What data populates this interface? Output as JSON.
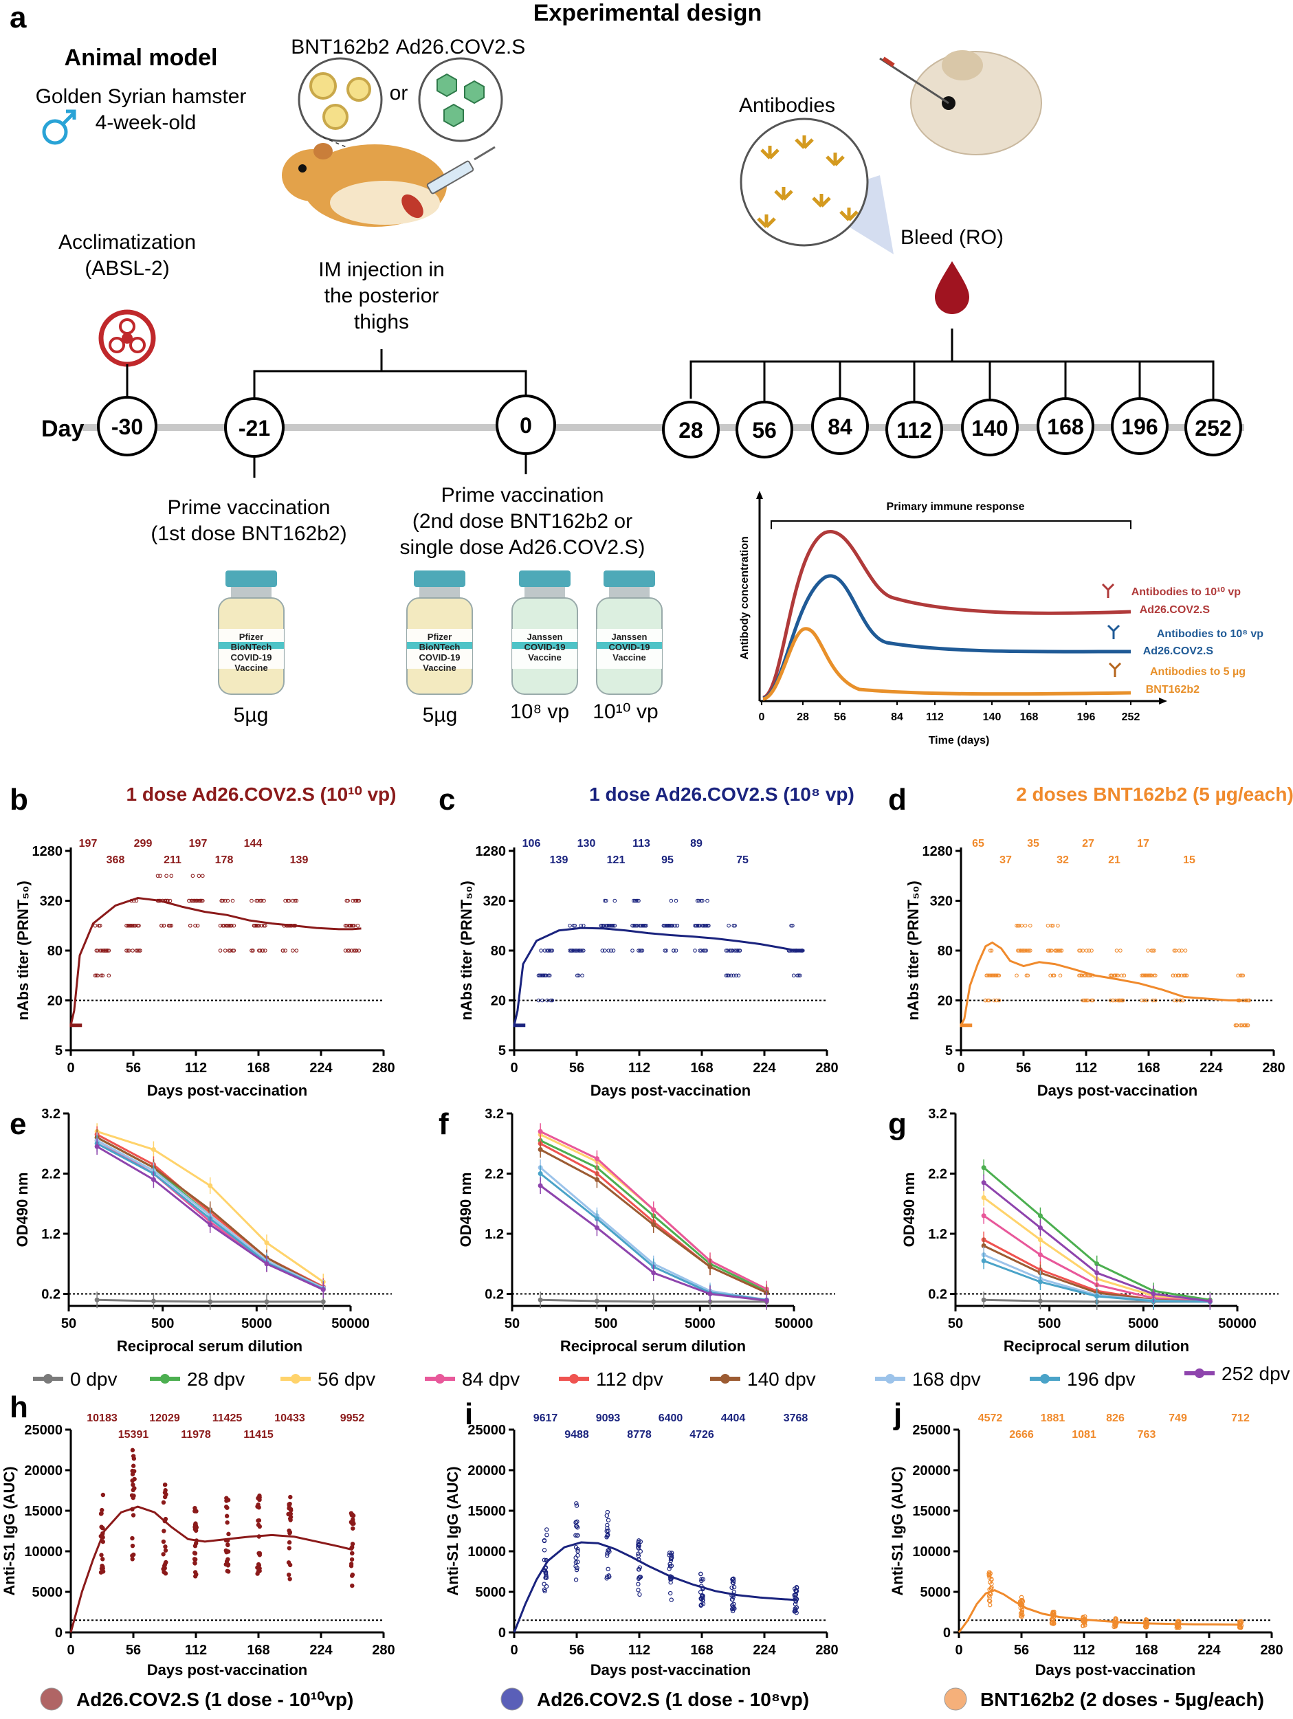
{
  "design": {
    "panel_label": "a",
    "title": "Experimental design",
    "animal_model_heading": "Animal model",
    "animal_line1": "Golden Syrian hamster",
    "animal_line2": "4-week-old",
    "vaccine_bnt": "BNT162b2",
    "vaccine_ad26": "Ad26.COV2.S",
    "or_text": "or",
    "antibodies_label": "Antibodies",
    "bleed_label": "Bleed (RO)",
    "acclim_line1": "Acclimatization",
    "acclim_line2": "(ABSL-2)",
    "im_line1": "IM injection in",
    "im_line2": "the posterior",
    "im_line3": "thighs",
    "day_label": "Day",
    "days": [
      "-30",
      "-21",
      "0",
      "28",
      "56",
      "84",
      "112",
      "140",
      "168",
      "196",
      "252"
    ],
    "prime1_line1": "Prime vaccination",
    "prime1_line2": "(1st dose BNT162b2)",
    "prime2_line1": "Prime vaccination",
    "prime2_line2": "(2nd dose BNT162b2 or",
    "prime2_line3": "single dose Ad26.COV2.S)",
    "vial_pfizer": [
      "Pfizer",
      "BioNTech",
      "COVID-19",
      "Vaccine"
    ],
    "vial_janssen": [
      "Janssen",
      "COVID-19",
      "Vaccine"
    ],
    "dose_5ug_a": "5µg",
    "dose_5ug_b": "5µg",
    "dose_10e8": "10⁸ vp",
    "dose_10e10": "10¹⁰ vp",
    "inset": {
      "title": "Primary immune response",
      "ylabel": "Antibody concentration",
      "xlabel": "Time (days)",
      "xticks": [
        "0",
        "28",
        "56",
        "84",
        "112",
        "140",
        "168",
        "196",
        "252"
      ],
      "leg1a": "Antibodies to 10¹⁰ vp",
      "leg1b": "Ad26.COV2.S",
      "leg2a": "Antibodies to 10⁸ vp",
      "leg2b": "Ad26.COV2.S",
      "leg3a": "Antibodies to 5 µg",
      "leg3b": "BNT162b2"
    }
  },
  "colors": {
    "ad26_high": "#8b1a1a",
    "ad26_low": "#1a237e",
    "bnt": "#f08a2c",
    "inset_red": "#b03a3a",
    "inset_blue": "#1f5a96",
    "inset_orange": "#e8902a"
  },
  "chart_data": [
    {
      "id": "b",
      "type": "scatter",
      "panel_label": "b",
      "title": "1 dose Ad26.COV2.S (10¹⁰ vp)",
      "xlabel": "Days post-vaccination",
      "ylabel": "nAbs titer (PRNT₅₀)",
      "x_ticks": [
        "0",
        "56",
        "112",
        "168",
        "224",
        "280"
      ],
      "y_ticks": [
        "5",
        "20",
        "80",
        "320",
        "1280"
      ],
      "xlim": [
        0,
        280
      ],
      "ylim_log2": [
        5,
        1280
      ],
      "threshold": 20,
      "annotations": [
        {
          "day": 0,
          "label": "197"
        },
        {
          "day": 28,
          "label": "368"
        },
        {
          "day": 56,
          "label": "299"
        },
        {
          "day": 84,
          "label": "211"
        },
        {
          "day": 112,
          "label": "197"
        },
        {
          "day": 140,
          "label": "178"
        },
        {
          "day": 168,
          "label": "144"
        },
        {
          "day": 252,
          "label": "139"
        }
      ],
      "curve_x": [
        0,
        3,
        8,
        20,
        40,
        60,
        80,
        100,
        120,
        140,
        160,
        180,
        200,
        220,
        240,
        252,
        260
      ],
      "curve_y": [
        10,
        15,
        70,
        170,
        280,
        345,
        320,
        270,
        235,
        215,
        185,
        170,
        160,
        150,
        145,
        145,
        148
      ]
    },
    {
      "id": "c",
      "type": "scatter",
      "panel_label": "c",
      "title": "1 dose Ad26.COV2.S (10⁸ vp)",
      "xlabel": "Days post-vaccination",
      "ylabel": "nAbs titer (PRNT₅₀)",
      "x_ticks": [
        "0",
        "56",
        "112",
        "168",
        "224",
        "280"
      ],
      "y_ticks": [
        "5",
        "20",
        "80",
        "320",
        "1280"
      ],
      "xlim": [
        0,
        280
      ],
      "ylim_log2": [
        5,
        1280
      ],
      "threshold": 20,
      "annotations": [
        {
          "day": 0,
          "label": "106"
        },
        {
          "day": 28,
          "label": "139"
        },
        {
          "day": 56,
          "label": "130"
        },
        {
          "day": 84,
          "label": "121"
        },
        {
          "day": 112,
          "label": "113"
        },
        {
          "day": 140,
          "label": "95"
        },
        {
          "day": 168,
          "label": "89"
        },
        {
          "day": 252,
          "label": "75"
        }
      ],
      "curve_x": [
        0,
        3,
        8,
        20,
        40,
        60,
        80,
        100,
        120,
        140,
        160,
        180,
        200,
        220,
        240,
        252,
        260
      ],
      "curve_y": [
        10,
        15,
        55,
        105,
        140,
        150,
        148,
        140,
        130,
        123,
        118,
        112,
        104,
        96,
        86,
        80,
        80
      ]
    },
    {
      "id": "d",
      "type": "scatter",
      "panel_label": "d",
      "title": "2 doses BNT162b2 (5 µg/each)",
      "xlabel": "Days post-vaccination",
      "ylabel": "nAbs titer (PRNT₅₀)",
      "x_ticks": [
        "0",
        "56",
        "112",
        "168",
        "224",
        "280"
      ],
      "y_ticks": [
        "5",
        "20",
        "80",
        "320",
        "1280"
      ],
      "xlim": [
        0,
        280
      ],
      "ylim_log2": [
        5,
        1280
      ],
      "threshold": 20,
      "annotations": [
        {
          "day": 0,
          "label": "65"
        },
        {
          "day": 28,
          "label": "37"
        },
        {
          "day": 56,
          "label": "35"
        },
        {
          "day": 84,
          "label": "32"
        },
        {
          "day": 112,
          "label": "27"
        },
        {
          "day": 140,
          "label": "21"
        },
        {
          "day": 168,
          "label": "17"
        },
        {
          "day": 252,
          "label": "15"
        }
      ],
      "curve_x": [
        0,
        3,
        8,
        15,
        22,
        28,
        36,
        44,
        56,
        70,
        84,
        100,
        120,
        140,
        160,
        180,
        200,
        220,
        240,
        252
      ],
      "curve_y": [
        10,
        12,
        30,
        55,
        90,
        100,
        85,
        60,
        52,
        58,
        55,
        48,
        40,
        36,
        32,
        27,
        22,
        21,
        20,
        20
      ]
    },
    {
      "id": "e",
      "type": "line",
      "panel_label": "e",
      "xlabel": "Reciprocal serum dilution",
      "ylabel": "OD490 nm",
      "x_ticks": [
        "50",
        "500",
        "5000",
        "50000"
      ],
      "y_ticks": [
        "0.2",
        "1.2",
        "2.2",
        "3.2"
      ],
      "xlim_log": [
        50,
        50000
      ],
      "ylim": [
        0,
        3.2
      ],
      "threshold": 0.2,
      "dilutions": [
        100,
        400,
        1600,
        6400,
        25600
      ],
      "series": [
        {
          "name": "0 dpv",
          "values": [
            0.1,
            0.08,
            0.07,
            0.07,
            0.07
          ]
        },
        {
          "name": "28 dpv",
          "values": [
            2.8,
            2.3,
            1.5,
            0.75,
            0.3
          ]
        },
        {
          "name": "56 dpv",
          "values": [
            2.9,
            2.6,
            2.0,
            1.05,
            0.4
          ]
        },
        {
          "name": "84 dpv",
          "values": [
            2.75,
            2.2,
            1.4,
            0.7,
            0.28
          ]
        },
        {
          "name": "112 dpv",
          "values": [
            2.85,
            2.35,
            1.55,
            0.8,
            0.32
          ]
        },
        {
          "name": "140 dpv",
          "values": [
            2.8,
            2.3,
            1.6,
            0.8,
            0.3
          ]
        },
        {
          "name": "168 dpv",
          "values": [
            2.75,
            2.25,
            1.5,
            0.75,
            0.3
          ]
        },
        {
          "name": "196 dpv",
          "values": [
            2.7,
            2.2,
            1.45,
            0.72,
            0.28
          ]
        },
        {
          "name": "252 dpv",
          "values": [
            2.65,
            2.1,
            1.35,
            0.7,
            0.27
          ]
        }
      ]
    },
    {
      "id": "f",
      "type": "line",
      "panel_label": "f",
      "xlabel": "Reciprocal serum dilution",
      "ylabel": "OD490 nm",
      "x_ticks": [
        "50",
        "500",
        "5000",
        "50000"
      ],
      "y_ticks": [
        "0.2",
        "1.2",
        "2.2",
        "3.2"
      ],
      "xlim_log": [
        50,
        50000
      ],
      "ylim": [
        0,
        3.2
      ],
      "threshold": 0.2,
      "dilutions": [
        100,
        400,
        1600,
        6400,
        25600
      ],
      "series": [
        {
          "name": "0 dpv",
          "values": [
            0.1,
            0.08,
            0.07,
            0.07,
            0.07
          ]
        },
        {
          "name": "28 dpv",
          "values": [
            2.75,
            2.3,
            1.5,
            0.7,
            0.25
          ]
        },
        {
          "name": "56 dpv",
          "values": [
            2.85,
            2.4,
            1.6,
            0.75,
            0.28
          ]
        },
        {
          "name": "84 dpv",
          "values": [
            2.9,
            2.45,
            1.6,
            0.75,
            0.28
          ]
        },
        {
          "name": "112 dpv",
          "values": [
            2.7,
            2.2,
            1.4,
            0.65,
            0.22
          ]
        },
        {
          "name": "140 dpv",
          "values": [
            2.6,
            2.1,
            1.35,
            0.65,
            0.22
          ]
        },
        {
          "name": "168 dpv",
          "values": [
            2.3,
            1.5,
            0.7,
            0.25,
            0.1
          ]
        },
        {
          "name": "196 dpv",
          "values": [
            2.2,
            1.45,
            0.65,
            0.22,
            0.1
          ]
        },
        {
          "name": "252 dpv",
          "values": [
            2.0,
            1.3,
            0.55,
            0.2,
            0.09
          ]
        }
      ]
    },
    {
      "id": "g",
      "type": "line",
      "panel_label": "g",
      "xlabel": "Reciprocal serum dilution",
      "ylabel": "OD490 nm",
      "x_ticks": [
        "50",
        "500",
        "5000",
        "50000"
      ],
      "y_ticks": [
        "0.2",
        "1.2",
        "2.2",
        "3.2"
      ],
      "xlim_log": [
        50,
        50000
      ],
      "ylim": [
        0,
        3.2
      ],
      "threshold": 0.2,
      "dilutions": [
        100,
        400,
        1600,
        6400,
        25600
      ],
      "series": [
        {
          "name": "0 dpv",
          "values": [
            0.1,
            0.08,
            0.07,
            0.07,
            0.07
          ]
        },
        {
          "name": "28 dpv",
          "values": [
            2.3,
            1.5,
            0.7,
            0.25,
            0.1
          ]
        },
        {
          "name": "56 dpv",
          "values": [
            1.8,
            1.1,
            0.45,
            0.17,
            0.08
          ]
        },
        {
          "name": "84 dpv",
          "values": [
            1.5,
            0.85,
            0.35,
            0.13,
            0.07
          ]
        },
        {
          "name": "112 dpv",
          "values": [
            1.1,
            0.6,
            0.25,
            0.1,
            0.07
          ]
        },
        {
          "name": "140 dpv",
          "values": [
            1.0,
            0.55,
            0.22,
            0.1,
            0.07
          ]
        },
        {
          "name": "168 dpv",
          "values": [
            0.85,
            0.45,
            0.18,
            0.09,
            0.07
          ]
        },
        {
          "name": "196 dpv",
          "values": [
            0.75,
            0.4,
            0.16,
            0.08,
            0.07
          ]
        },
        {
          "name": "252 dpv",
          "values": [
            2.05,
            1.3,
            0.55,
            0.2,
            0.08
          ]
        }
      ]
    },
    {
      "id": "h",
      "type": "scatter",
      "panel_label": "h",
      "xlabel": "Days post-vaccination",
      "ylabel": "Anti-S1 IgG (AUC)",
      "x_ticks": [
        "0",
        "56",
        "112",
        "168",
        "224",
        "280"
      ],
      "y_ticks": [
        "0",
        "5000",
        "10000",
        "15000",
        "20000",
        "25000"
      ],
      "xlim": [
        0,
        280
      ],
      "ylim": [
        0,
        25000
      ],
      "threshold": 1500,
      "annotations_top": [
        "10183",
        "12029",
        "11425",
        "10433",
        "9952"
      ],
      "annotations_bottom": [
        "15391",
        "11978",
        "11415"
      ],
      "curve_x": [
        0,
        10,
        20,
        30,
        45,
        60,
        75,
        90,
        105,
        120,
        140,
        160,
        180,
        200,
        220,
        240,
        252
      ],
      "curve_y": [
        0,
        5000,
        9000,
        12500,
        14800,
        15500,
        14800,
        13000,
        11500,
        11200,
        11500,
        11800,
        12000,
        11800,
        11200,
        10600,
        10200
      ]
    },
    {
      "id": "i",
      "type": "scatter",
      "panel_label": "i",
      "xlabel": "Days post-vaccination",
      "ylabel": "Anti-S1 IgG (AUC)",
      "x_ticks": [
        "0",
        "56",
        "112",
        "168",
        "224",
        "280"
      ],
      "y_ticks": [
        "0",
        "5000",
        "10000",
        "15000",
        "20000",
        "25000"
      ],
      "xlim": [
        0,
        280
      ],
      "ylim": [
        0,
        25000
      ],
      "threshold": 1500,
      "annotations_top": [
        "9617",
        "9093",
        "6400",
        "4404",
        "3768"
      ],
      "annotations_bottom": [
        "9488",
        "8778",
        "4726"
      ],
      "curve_x": [
        0,
        10,
        20,
        30,
        45,
        60,
        75,
        90,
        105,
        120,
        140,
        160,
        180,
        200,
        220,
        240,
        252
      ],
      "curve_y": [
        0,
        3500,
        6500,
        8800,
        10500,
        11100,
        11000,
        10300,
        9300,
        8200,
        6900,
        5900,
        5100,
        4600,
        4300,
        4100,
        4000
      ]
    },
    {
      "id": "j",
      "type": "scatter",
      "panel_label": "j",
      "xlabel": "Days post-vaccination",
      "ylabel": "Anti-S1 IgG (AUC)",
      "x_ticks": [
        "0",
        "56",
        "112",
        "168",
        "224",
        "280"
      ],
      "y_ticks": [
        "0",
        "5000",
        "10000",
        "15000",
        "20000",
        "25000"
      ],
      "xlim": [
        0,
        280
      ],
      "ylim": [
        0,
        25000
      ],
      "threshold": 1500,
      "annotations_top": [
        "4572",
        "1881",
        "826",
        "749",
        "712"
      ],
      "annotations_bottom": [
        "2666",
        "1081",
        "763"
      ],
      "curve_x": [
        0,
        8,
        16,
        24,
        32,
        40,
        50,
        60,
        75,
        90,
        110,
        130,
        150,
        170,
        190,
        210,
        230,
        252
      ],
      "curve_y": [
        0,
        1500,
        3500,
        4800,
        5200,
        4700,
        3800,
        3000,
        2300,
        1900,
        1600,
        1400,
        1200,
        1100,
        1050,
        1000,
        980,
        950
      ]
    }
  ],
  "legend_dpv": [
    {
      "label": "0 dpv",
      "color": "#7a7a7a"
    },
    {
      "label": "28 dpv",
      "color": "#4caf50"
    },
    {
      "label": "56 dpv",
      "color": "#ffd36b"
    },
    {
      "label": "84 dpv",
      "color": "#e8589a"
    },
    {
      "label": "112 dpv",
      "color": "#ef5350"
    },
    {
      "label": "140 dpv",
      "color": "#9c5b32"
    },
    {
      "label": "168 dpv",
      "color": "#9cc3ea"
    },
    {
      "label": "196 dpv",
      "color": "#4aa3c8"
    },
    {
      "label": "252 dpv",
      "color": "#8e44ad"
    }
  ],
  "legend_groups": [
    {
      "label": "Ad26.COV2.S (1 dose - 10¹⁰vp)",
      "color": "#b06565"
    },
    {
      "label": "Ad26.COV2.S (1 dose - 10⁸vp)",
      "color": "#5a5fb8"
    },
    {
      "label": "BNT162b2 (2 doses - 5µg/each)",
      "color": "#f5b07a"
    }
  ]
}
